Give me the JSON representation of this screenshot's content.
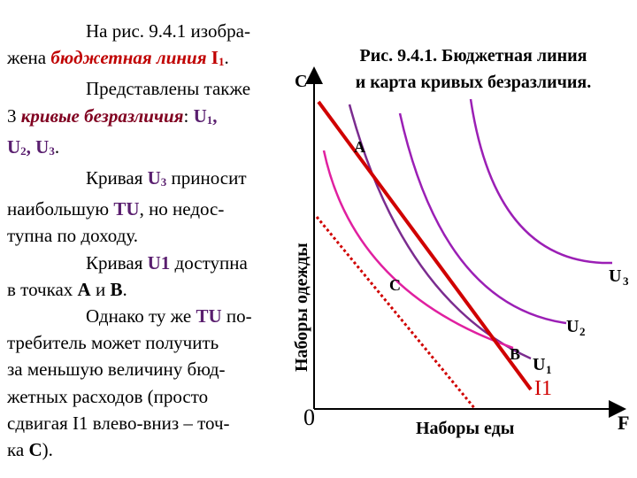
{
  "text": {
    "lines": [
      [
        "На рис. 9.4.1 изобра-"
      ],
      [
        "жена ",
        "бюджетная линия",
        " I",
        "1",
        "."
      ],
      [
        "Представлены также"
      ],
      [
        "3 ",
        "кривые безразличия",
        ": ",
        "U",
        "1",
        ","
      ],
      [
        "U",
        "2",
        ", U",
        "3",
        "."
      ],
      [
        "Кривая ",
        "U",
        "3",
        " приносит"
      ],
      [
        "наибольшую ",
        "TU",
        ", но недос-"
      ],
      [
        "тупна по доходу."
      ],
      [
        "Кривая ",
        "U1",
        " доступна"
      ],
      [
        "в точках ",
        "A",
        " и ",
        "B",
        "."
      ],
      [
        "Однако ту же ",
        "TU",
        " по-"
      ],
      [
        "требитель может получить"
      ],
      [
        "за меньшую величину бюд-"
      ],
      [
        "жетных расходов (просто"
      ],
      [
        "сдвигая I1 влево-вниз – точ-"
      ],
      [
        "ка ",
        "C",
        ")."
      ]
    ]
  },
  "diagram": {
    "title": [
      "Рис. 9.4.1. Бюджетная линия",
      "и карта кривых безразличия."
    ],
    "y_axis_top": "C",
    "y_axis_label": "Наборы одежды",
    "origin": "0",
    "x_axis_label": "Наборы еды",
    "x_axis_end": "F",
    "point_a": "A",
    "point_b": "B",
    "point_c": "C",
    "u3": [
      "U",
      "3"
    ],
    "u2": [
      "U",
      "2"
    ],
    "u1": [
      "U",
      "1"
    ],
    "budget": "I1"
  }
}
